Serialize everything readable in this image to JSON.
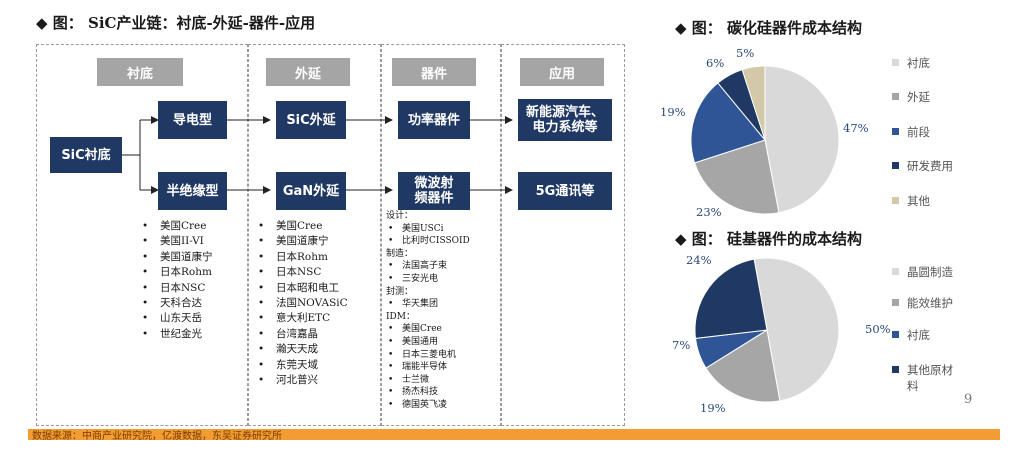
{
  "left": {
    "title": "◆ 图： SiC产业链：衬底-外延-器件-应用",
    "headers": [
      "衬底",
      "外延",
      "器件",
      "应用"
    ],
    "sic_substrate": "SiC衬底",
    "conductive": "导电型",
    "semi_insulating": "半绝缘型",
    "sic_epi": "SiC外延",
    "gan_epi": "GaN外延",
    "power_device": "功率器件",
    "rf_device": "微波射频器件",
    "app_ev": "新能源汽车、电力系统等",
    "app_5g": "5G通讯等",
    "substrate_cos": [
      "美国Cree",
      "美国II-VI",
      "美国道康宁",
      "日本Rohm",
      "日本NSC",
      "天科合达",
      "山东天岳",
      "世纪金光"
    ],
    "epi_cos": [
      "美国Cree",
      "美国道康宁",
      "日本Rohm",
      "日本NSC",
      "日本昭和电工",
      "法国NOVASiC",
      "意大利ETC",
      "台湾嘉晶",
      "瀚天天成",
      "东莞天域",
      "河北普兴"
    ],
    "device_groups": [
      {
        "label": "设计：",
        "items": [
          "美国USCi",
          "比利时CISSOID"
        ]
      },
      {
        "label": "制造：",
        "items": [
          "法国高子束",
          "三安光电"
        ]
      },
      {
        "label": "封测：",
        "items": [
          "华天集团"
        ]
      },
      {
        "label": "IDM：",
        "items": [
          "美国Cree",
          "美国通用",
          "日本三菱电机",
          "瑞能半导体",
          "士兰微",
          "扬杰科技",
          "德国英飞凌"
        ]
      }
    ],
    "source": "数据来源：中商产业研究院，亿渡数据，东吴证券研究所"
  },
  "chart_data": [
    {
      "type": "pie",
      "title": "◆ 图： 碳化硅器件成本结构",
      "labels": [
        "衬底",
        "外延",
        "前段",
        "研发费用",
        "其他"
      ],
      "values": [
        47,
        23,
        19,
        6,
        5
      ],
      "value_labels": [
        "47%",
        "23%",
        "19%",
        "6%",
        "5%"
      ],
      "colors": [
        "#d9d9d9",
        "#a6a6a6",
        "#2f5597",
        "#1f3864",
        "#d3c9a8"
      ],
      "legend_position": "right"
    },
    {
      "type": "pie",
      "title": "◆ 图： 硅基器件的成本结构",
      "labels": [
        "晶圆制造",
        "能效维护",
        "衬底",
        "其他原材料"
      ],
      "values": [
        50,
        19,
        7,
        24
      ],
      "value_labels": [
        "50%",
        "19%",
        "7%",
        "24%"
      ],
      "colors": [
        "#d9d9d9",
        "#a6a6a6",
        "#2f5597",
        "#1f3864"
      ],
      "legend_position": "right"
    }
  ],
  "page_number": "9"
}
